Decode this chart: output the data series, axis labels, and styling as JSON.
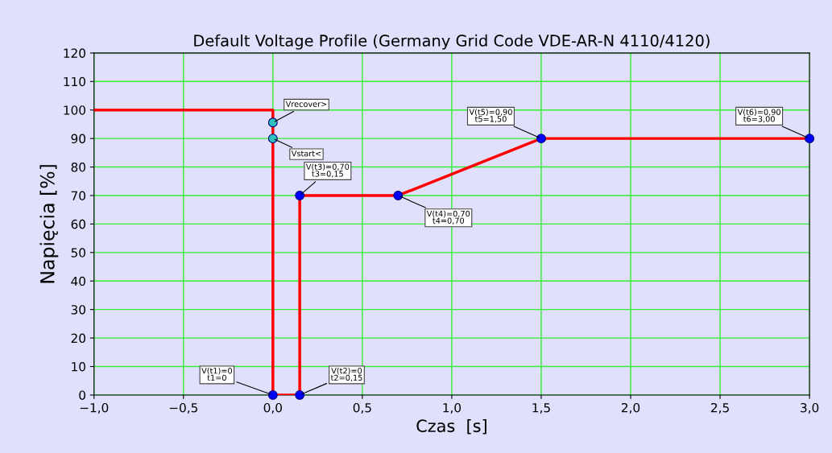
{
  "chart_data": {
    "type": "line",
    "title": "Default Voltage Profile (Germany Grid Code VDE-AR-N 4110/4120)",
    "xlabel": "Czas  [s]",
    "ylabel": "Napięcia [%]",
    "series": [
      {
        "color": "#ff0000",
        "x": [
          -1,
          0,
          0,
          0.15,
          0.15,
          0.7,
          1.5,
          3
        ],
        "values": [
          100,
          100,
          0,
          0,
          70,
          70,
          90,
          90
        ]
      },
      {
        "type": "scatter",
        "marker": "circle",
        "color": "#0000ff",
        "x": [
          0,
          0.15,
          0.15,
          0.7,
          1.5,
          3
        ],
        "values": [
          0,
          0,
          70,
          70,
          90,
          90
        ]
      },
      {
        "type": "scatter",
        "marker": "circle",
        "color": "#30c0c0",
        "x": [
          0,
          0
        ],
        "values": [
          95.6,
          90
        ]
      }
    ],
    "annotations": [
      {
        "text": "V(t1)=0\nt1=0",
        "x": 0,
        "y": 0
      },
      {
        "text": "V(t2)=0\nt2=0,15",
        "x": 0.15,
        "y": 0
      },
      {
        "text": "V(t3)=0,70\nt3=0,15",
        "x": 0.15,
        "y": 70
      },
      {
        "text": "V(t4)=0,70\nt4=0,70",
        "x": 0.7,
        "y": 70
      },
      {
        "text": "V(t5)=0,90\nt5=1,50",
        "x": 1.5,
        "y": 90
      },
      {
        "text": "V(t6)=0,90\nt6=3,00",
        "x": 3,
        "y": 90
      },
      {
        "text": "Vrecover>",
        "x": 0,
        "y": 95.6
      },
      {
        "text": "Vstart<",
        "x": 0,
        "y": 90
      }
    ],
    "xlim": [
      -1,
      3
    ],
    "ylim": [
      0,
      120
    ],
    "xticks": [
      {
        "value": -1,
        "label": "−1,0"
      },
      {
        "value": -0.5,
        "label": "−0,5"
      },
      {
        "value": 0,
        "label": "0,0"
      },
      {
        "value": 0.5,
        "label": "0,5"
      },
      {
        "value": 1,
        "label": "1,0"
      },
      {
        "value": 1.5,
        "label": "1,5"
      },
      {
        "value": 2,
        "label": "2,0"
      },
      {
        "value": 2.5,
        "label": "2,5"
      },
      {
        "value": 3,
        "label": "3,0"
      }
    ],
    "yticks": [
      0,
      10,
      20,
      30,
      40,
      50,
      60,
      70,
      80,
      90,
      100,
      110,
      120
    ],
    "grid": true,
    "line_style": "solid",
    "legend": false
  }
}
